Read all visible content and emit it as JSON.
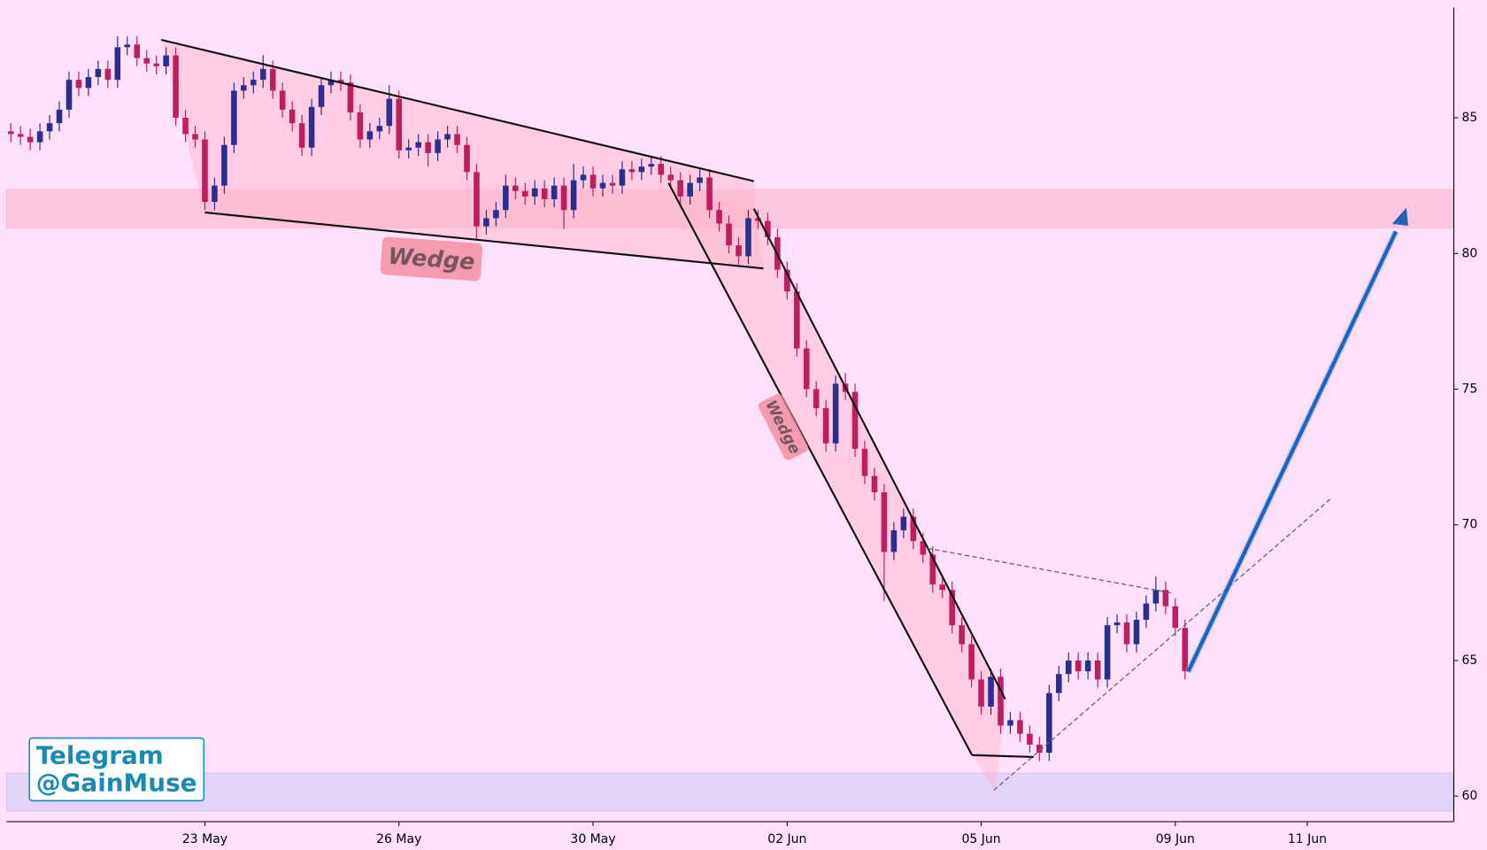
{
  "chart_data": {
    "type": "candlestick",
    "xlim": [
      -0.43,
      148.7
    ],
    "ylim": [
      59.06,
      89.06
    ],
    "yticks": [
      60,
      65,
      70,
      75,
      80,
      85
    ],
    "xticks": [
      {
        "value": 20,
        "label": "23 May"
      },
      {
        "value": 40,
        "label": "26 May"
      },
      {
        "value": 60,
        "label": "30 May"
      },
      {
        "value": 80,
        "label": "02 Jun"
      },
      {
        "value": 100,
        "label": "05 Jun"
      },
      {
        "value": 120,
        "label": "09 Jun"
      },
      {
        "value": 133.6,
        "label": "11 Jun"
      }
    ],
    "up_color": "#2b2f8c",
    "down_color": "#bb1f5f",
    "annotations": {
      "labels": [
        "Wedge",
        "Wedge"
      ],
      "watermark": [
        "Telegram",
        "@GainMuse"
      ]
    },
    "x": [
      0,
      1,
      2,
      3,
      4,
      5,
      6,
      7,
      8,
      9,
      10,
      11,
      12,
      13,
      14,
      15,
      16,
      17,
      18,
      19,
      20,
      21,
      22,
      23,
      24,
      25,
      26,
      27,
      28,
      29,
      30,
      31,
      32,
      33,
      34,
      35,
      36,
      37,
      38,
      39,
      40,
      41,
      42,
      43,
      44,
      45,
      46,
      47,
      48,
      49,
      50,
      51,
      52,
      53,
      54,
      55,
      56,
      57,
      58,
      59,
      60,
      61,
      62,
      63,
      64,
      65,
      66,
      67,
      68,
      69,
      70,
      71,
      72,
      73,
      74,
      75,
      76,
      77,
      78,
      79,
      80,
      81,
      82,
      83,
      84,
      85,
      86,
      87,
      88,
      89,
      90,
      91,
      92,
      93,
      94,
      95,
      96,
      97,
      98,
      99,
      100,
      101,
      102,
      103,
      104,
      105,
      106,
      107,
      108,
      109,
      110,
      111,
      112,
      113,
      114,
      115,
      116,
      117,
      118,
      119,
      120,
      121
    ],
    "open": [
      84.5,
      84.4,
      84.3,
      84.1,
      84.5,
      84.8,
      85.3,
      86.4,
      86.1,
      86.5,
      86.8,
      86.4,
      87.6,
      87.7,
      87.2,
      87.0,
      86.9,
      87.3,
      85.0,
      84.4,
      84.2,
      81.9,
      82.5,
      84.0,
      86.0,
      86.2,
      86.4,
      86.8,
      86.0,
      85.3,
      84.8,
      83.9,
      85.4,
      86.2,
      86.4,
      86.3,
      85.2,
      84.2,
      84.5,
      84.7,
      85.7,
      83.8,
      83.9,
      84.1,
      83.7,
      84.2,
      84.4,
      84.0,
      83.0,
      81.0,
      81.3,
      81.6,
      82.5,
      82.3,
      82.1,
      82.4,
      82.0,
      82.5,
      81.6,
      82.7,
      82.9,
      82.4,
      82.6,
      82.5,
      83.1,
      83.0,
      83.2,
      83.3,
      82.9,
      82.7,
      82.1,
      82.6,
      82.8,
      81.6,
      81.1,
      80.3,
      79.9,
      81.3,
      81.2,
      80.6,
      79.4,
      78.6,
      76.5,
      75.0,
      74.3,
      73.0,
      75.2,
      74.9,
      72.8,
      71.8,
      71.2,
      69.0,
      69.8,
      70.3,
      69.4,
      68.9,
      67.8,
      67.6,
      66.3,
      65.6,
      64.3,
      63.3,
      64.4,
      62.6,
      62.8,
      62.3,
      61.9,
      61.6,
      63.8,
      64.5,
      65.0,
      64.6,
      65.0,
      64.3,
      66.3,
      66.4,
      65.6,
      66.5,
      67.1,
      67.6,
      67.0,
      66.2
    ],
    "high": [
      84.8,
      84.7,
      84.6,
      84.8,
      85.1,
      85.6,
      86.7,
      86.7,
      86.8,
      87.1,
      87.1,
      88.0,
      88.0,
      88.0,
      87.5,
      87.3,
      87.6,
      87.6,
      85.3,
      84.7,
      84.5,
      82.8,
      84.3,
      86.3,
      86.5,
      86.7,
      87.3,
      87.1,
      86.3,
      85.6,
      85.1,
      85.7,
      86.5,
      86.7,
      86.7,
      86.6,
      85.5,
      84.8,
      85.0,
      86.2,
      86.0,
      84.2,
      84.4,
      84.4,
      84.5,
      84.7,
      84.7,
      84.3,
      83.3,
      81.6,
      81.9,
      82.9,
      82.8,
      82.6,
      82.7,
      82.7,
      82.8,
      82.8,
      83.3,
      83.2,
      83.2,
      82.9,
      82.9,
      83.4,
      83.4,
      83.5,
      83.6,
      83.6,
      83.2,
      83.0,
      82.9,
      83.1,
      83.1,
      81.9,
      81.4,
      80.6,
      81.6,
      81.6,
      81.5,
      80.9,
      79.7,
      78.9,
      76.8,
      75.3,
      74.6,
      75.5,
      75.6,
      75.2,
      73.1,
      72.1,
      71.5,
      70.1,
      70.6,
      70.6,
      69.7,
      69.2,
      68.1,
      67.9,
      66.6,
      65.9,
      64.6,
      64.7,
      64.7,
      63.1,
      63.1,
      62.6,
      62.2,
      64.1,
      64.8,
      65.3,
      65.3,
      65.3,
      65.3,
      66.6,
      66.7,
      66.7,
      66.8,
      67.4,
      68.1,
      67.9,
      67.3,
      66.5
    ],
    "low": [
      84.1,
      84.0,
      83.8,
      83.8,
      84.2,
      84.5,
      85.0,
      85.8,
      85.8,
      86.2,
      86.1,
      86.1,
      87.3,
      86.9,
      86.7,
      86.6,
      86.6,
      84.7,
      84.1,
      83.9,
      81.6,
      81.6,
      82.2,
      83.7,
      85.7,
      85.9,
      86.1,
      85.7,
      85.0,
      84.5,
      83.6,
      83.6,
      85.1,
      85.9,
      86.0,
      84.9,
      83.9,
      83.9,
      84.2,
      84.4,
      83.5,
      83.5,
      83.6,
      83.2,
      83.4,
      83.9,
      83.7,
      82.7,
      80.5,
      80.7,
      81.0,
      81.3,
      82.0,
      81.8,
      81.8,
      81.7,
      81.7,
      80.9,
      81.3,
      82.4,
      82.1,
      82.1,
      82.2,
      82.2,
      82.7,
      82.7,
      82.9,
      82.6,
      82.4,
      81.8,
      81.8,
      82.3,
      81.3,
      80.8,
      80.0,
      79.6,
      79.6,
      80.9,
      80.3,
      79.1,
      78.3,
      76.2,
      74.7,
      74.0,
      72.7,
      72.7,
      74.6,
      72.5,
      71.5,
      70.9,
      67.2,
      68.7,
      69.5,
      69.1,
      68.6,
      67.5,
      67.3,
      66.0,
      65.3,
      64.0,
      63.0,
      63.0,
      62.3,
      62.3,
      62.0,
      61.6,
      61.3,
      61.3,
      63.5,
      64.2,
      64.3,
      64.3,
      64.0,
      64.0,
      66.0,
      65.3,
      65.3,
      66.2,
      66.8,
      66.7,
      65.9,
      64.3
    ],
    "close": [
      84.4,
      84.3,
      84.1,
      84.5,
      84.8,
      85.3,
      86.4,
      86.1,
      86.5,
      86.8,
      86.4,
      87.6,
      87.7,
      87.2,
      87.0,
      86.9,
      87.3,
      85.0,
      84.4,
      84.2,
      81.9,
      82.5,
      84.0,
      86.0,
      86.2,
      86.4,
      86.8,
      86.0,
      85.3,
      84.8,
      83.9,
      85.4,
      86.2,
      86.4,
      86.3,
      85.2,
      84.2,
      84.5,
      84.7,
      85.7,
      83.8,
      83.9,
      84.1,
      83.7,
      84.2,
      84.4,
      84.0,
      83.0,
      81.0,
      81.3,
      81.6,
      82.5,
      82.3,
      82.1,
      82.4,
      82.0,
      82.5,
      81.6,
      82.7,
      82.9,
      82.4,
      82.6,
      82.5,
      83.1,
      83.0,
      83.2,
      83.3,
      82.9,
      82.7,
      82.1,
      82.6,
      82.8,
      81.6,
      81.1,
      80.3,
      79.9,
      81.3,
      81.2,
      80.6,
      79.4,
      78.6,
      76.5,
      75.0,
      74.3,
      73.0,
      75.2,
      74.9,
      72.8,
      71.8,
      71.2,
      69.0,
      69.8,
      70.3,
      69.4,
      68.9,
      67.8,
      67.6,
      66.3,
      65.6,
      64.3,
      63.3,
      64.4,
      62.6,
      62.8,
      62.3,
      61.9,
      61.6,
      63.8,
      64.5,
      65.0,
      64.6,
      65.0,
      64.3,
      66.3,
      66.4,
      65.6,
      66.5,
      67.1,
      67.6,
      67.0,
      66.2,
      64.6
    ]
  }
}
